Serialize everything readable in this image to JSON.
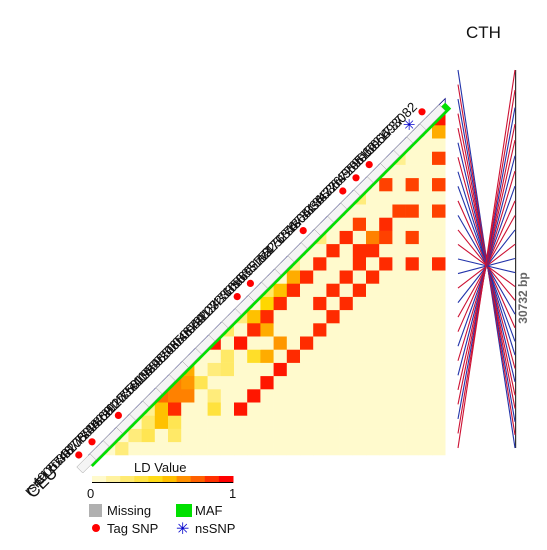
{
  "population": "CEU",
  "gene": "CTH",
  "region_length": "30732 bp",
  "snps": [
    {
      "id": "rs4905746",
      "tag": true,
      "ns": false
    },
    {
      "id": "rs12030275",
      "tag": true,
      "ns": false
    },
    {
      "id": "rs4877734",
      "tag": false,
      "ns": false
    },
    {
      "id": "rs10889869",
      "tag": true,
      "ns": false
    },
    {
      "id": "rs4822917",
      "tag": false,
      "ns": false
    },
    {
      "id": "rs6814758",
      "tag": false,
      "ns": false
    },
    {
      "id": "rs12037405",
      "tag": false,
      "ns": false
    },
    {
      "id": "rs5019395",
      "tag": false,
      "ns": false
    },
    {
      "id": "rs11459203",
      "tag": false,
      "ns": false
    },
    {
      "id": "rs4650048",
      "tag": false,
      "ns": false
    },
    {
      "id": "rs4650049",
      "tag": false,
      "ns": false
    },
    {
      "id": "rs672203",
      "tag": false,
      "ns": false
    },
    {
      "id": "rs6413471",
      "tag": true,
      "ns": false
    },
    {
      "id": "rs12723350",
      "tag": true,
      "ns": false
    },
    {
      "id": "rs608609",
      "tag": false,
      "ns": false
    },
    {
      "id": "rs535112",
      "tag": false,
      "ns": false
    },
    {
      "id": "rs577476",
      "tag": false,
      "ns": false
    },
    {
      "id": "rs525276",
      "tag": true,
      "ns": false
    },
    {
      "id": "rs17131305",
      "tag": false,
      "ns": false
    },
    {
      "id": "rs473334",
      "tag": false,
      "ns": false
    },
    {
      "id": "rs6413472",
      "tag": true,
      "ns": false
    },
    {
      "id": "rs663649",
      "tag": true,
      "ns": false
    },
    {
      "id": "rs3767205",
      "tag": true,
      "ns": false
    },
    {
      "id": "rs559062",
      "tag": false,
      "ns": false
    },
    {
      "id": "rs515064",
      "tag": false,
      "ns": false
    },
    {
      "id": "rs1021737",
      "tag": false,
      "ns": true
    },
    {
      "id": "rs6693082",
      "tag": true,
      "ns": false
    }
  ],
  "ld_cells": [
    {
      "i": 25,
      "j": 26,
      "v": 0.95
    },
    {
      "i": 24,
      "j": 26,
      "v": 0.6
    },
    {
      "i": 22,
      "j": 26,
      "v": 0.85
    },
    {
      "i": 20,
      "j": 26,
      "v": 0.85
    },
    {
      "i": 18,
      "j": 26,
      "v": 0.85
    },
    {
      "i": 14,
      "j": 26,
      "v": 0.9
    },
    {
      "i": 20,
      "j": 24,
      "v": 0.85
    },
    {
      "i": 18,
      "j": 24,
      "v": 0.85
    },
    {
      "i": 16,
      "j": 24,
      "v": 0.85
    },
    {
      "i": 14,
      "j": 24,
      "v": 0.9
    },
    {
      "i": 18,
      "j": 23,
      "v": 0.85
    },
    {
      "i": 17,
      "j": 22,
      "v": 0.9
    },
    {
      "i": 16,
      "j": 22,
      "v": 0.85
    },
    {
      "i": 14,
      "j": 22,
      "v": 0.9
    },
    {
      "i": 20,
      "j": 22,
      "v": 0.85
    },
    {
      "i": 15,
      "j": 21,
      "v": 0.9
    },
    {
      "i": 16,
      "j": 21,
      "v": 0.7
    },
    {
      "i": 13,
      "j": 21,
      "v": 0.9
    },
    {
      "i": 17,
      "j": 20,
      "v": 0.85
    },
    {
      "i": 15,
      "j": 20,
      "v": 0.9
    },
    {
      "i": 14,
      "j": 20,
      "v": 0.9
    },
    {
      "i": 12,
      "j": 20,
      "v": 0.9
    },
    {
      "i": 16,
      "j": 19,
      "v": 0.9
    },
    {
      "i": 13,
      "j": 19,
      "v": 0.9
    },
    {
      "i": 11,
      "j": 19,
      "v": 0.9
    },
    {
      "i": 15,
      "j": 18,
      "v": 0.9
    },
    {
      "i": 12,
      "j": 18,
      "v": 0.9
    },
    {
      "i": 10,
      "j": 18,
      "v": 0.9
    },
    {
      "i": 14,
      "j": 17,
      "v": 0.9
    },
    {
      "i": 11,
      "j": 17,
      "v": 0.9
    },
    {
      "i": 9,
      "j": 17,
      "v": 0.9
    },
    {
      "i": 13,
      "j": 16,
      "v": 0.9
    },
    {
      "i": 8,
      "j": 16,
      "v": 0.9
    },
    {
      "i": 12,
      "j": 15,
      "v": 0.9
    },
    {
      "i": 7,
      "j": 15,
      "v": 0.9
    },
    {
      "i": 11,
      "j": 14,
      "v": 0.9
    },
    {
      "i": 6,
      "j": 14,
      "v": 0.95
    },
    {
      "i": 10,
      "j": 13,
      "v": 0.9
    },
    {
      "i": 5,
      "j": 13,
      "v": 0.95
    },
    {
      "i": 9,
      "j": 12,
      "v": 0.9
    },
    {
      "i": 4,
      "j": 12,
      "v": 0.95
    },
    {
      "i": 8,
      "j": 11,
      "v": 0.95
    },
    {
      "i": 3,
      "j": 11,
      "v": 0.95
    },
    {
      "i": 4,
      "j": 5,
      "v": 0.75
    },
    {
      "i": 4,
      "j": 6,
      "v": 0.7
    },
    {
      "i": 4,
      "j": 7,
      "v": 0.7
    },
    {
      "i": 5,
      "j": 6,
      "v": 0.7
    },
    {
      "i": 5,
      "j": 7,
      "v": 0.65
    },
    {
      "i": 6,
      "j": 7,
      "v": 0.6
    },
    {
      "i": 3,
      "j": 6,
      "v": 0.9
    },
    {
      "i": 3,
      "j": 5,
      "v": 0.55
    },
    {
      "i": 2,
      "j": 5,
      "v": 0.55
    },
    {
      "i": 8,
      "j": 9,
      "v": 0.95
    },
    {
      "i": 7,
      "j": 10,
      "v": 0.25
    },
    {
      "i": 6,
      "j": 10,
      "v": 0.25
    },
    {
      "i": 6,
      "j": 9,
      "v": 0.2
    },
    {
      "i": 5,
      "j": 8,
      "v": 0.3
    },
    {
      "i": 10,
      "j": 12,
      "v": 0.55
    },
    {
      "i": 9,
      "j": 13,
      "v": 0.6
    },
    {
      "i": 8,
      "j": 14,
      "v": 0.65
    },
    {
      "i": 7,
      "j": 13,
      "v": 0.6
    },
    {
      "i": 11,
      "j": 13,
      "v": 0.5
    },
    {
      "i": 12,
      "j": 14,
      "v": 0.55
    },
    {
      "i": 13,
      "j": 15,
      "v": 0.6
    },
    {
      "i": 7,
      "j": 12,
      "v": 0.4
    },
    {
      "i": 12,
      "j": 13,
      "v": 0.25
    },
    {
      "i": 9,
      "j": 10,
      "v": 0.25
    },
    {
      "i": 10,
      "j": 11,
      "v": 0.2
    },
    {
      "i": 3,
      "j": 4,
      "v": 0.15
    },
    {
      "i": 2,
      "j": 4,
      "v": 0.25
    },
    {
      "i": 1,
      "j": 3,
      "v": 0.2
    },
    {
      "i": 0,
      "j": 2,
      "v": 0.2
    },
    {
      "i": 1,
      "j": 4,
      "v": 0.3
    },
    {
      "i": 2,
      "j": 6,
      "v": 0.3
    },
    {
      "i": 1,
      "j": 6,
      "v": 0.25
    },
    {
      "i": 3,
      "j": 9,
      "v": 0.35
    },
    {
      "i": 4,
      "j": 9,
      "v": 0.2
    },
    {
      "i": 14,
      "j": 15,
      "v": 0.15
    },
    {
      "i": 16,
      "j": 17,
      "v": 0.2
    },
    {
      "i": 19,
      "j": 20,
      "v": 0.2
    },
    {
      "i": 22,
      "j": 23,
      "v": 0.15
    }
  ],
  "legend": {
    "title": "LD Value",
    "min_label": "0",
    "max_label": "1",
    "missing_label": "Missing",
    "maf_label": "MAF",
    "tag_label": "Tag SNP",
    "ns_label": "nsSNP"
  },
  "colors": {
    "ld_low": "#fffacd",
    "ld_mid": "#ffd700",
    "ld_high": "#ff0000",
    "maf": "#00e000",
    "missing": "#b0b0b0",
    "tag_snp": "#ff0000",
    "ns_snp": "#0000cc",
    "connector_red": "#cc1133",
    "connector_blue": "#2233aa",
    "outline": "#000080"
  },
  "connector_colors": [
    "blue",
    "red",
    "blue",
    "red",
    "red",
    "blue",
    "red",
    "blue",
    "blue",
    "red",
    "blue",
    "red",
    "red",
    "blue",
    "blue",
    "red",
    "blue",
    "red",
    "red",
    "blue",
    "red",
    "blue",
    "red",
    "red",
    "blue",
    "red",
    "red"
  ]
}
